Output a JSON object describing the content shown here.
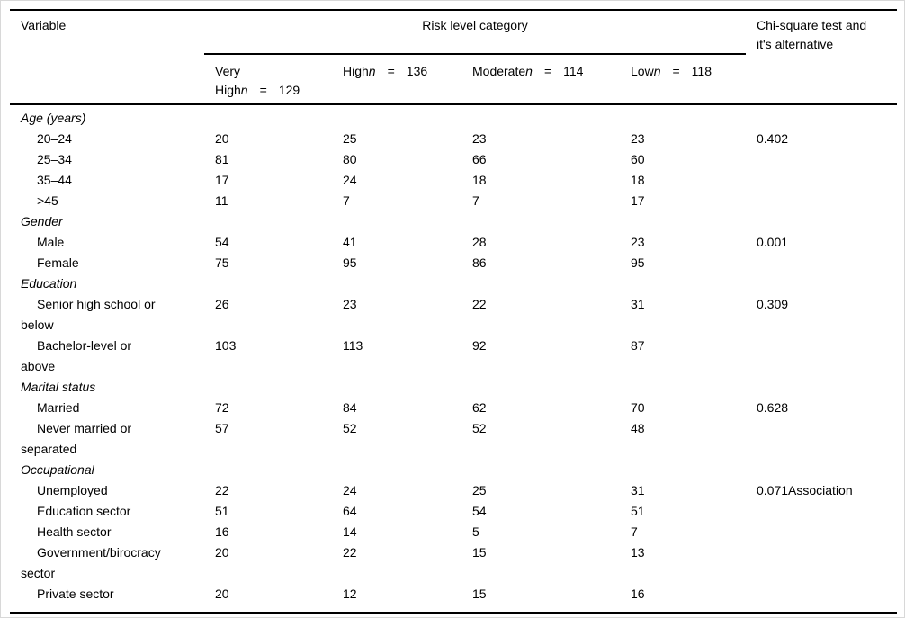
{
  "header": {
    "variable": "Variable",
    "risk_category": "Risk level category",
    "chi_line1": "Chi-square test and",
    "chi_line2": "it's alternative",
    "columns": [
      {
        "label_line1": "Very",
        "label_line2": "High",
        "n": "n",
        "eq": "=",
        "count": "129"
      },
      {
        "label": "High",
        "n": "n",
        "eq": "=",
        "count": "136"
      },
      {
        "label": "Moderate",
        "n": "n",
        "eq": "=",
        "count": "114"
      },
      {
        "label": "Low",
        "n": "n",
        "eq": "=",
        "count": "118"
      }
    ]
  },
  "table": {
    "rows": [
      {
        "type": "group",
        "label": "Age (years)"
      },
      {
        "type": "item",
        "label_lines": [
          "20–24"
        ],
        "values": [
          "20",
          "25",
          "23",
          "23"
        ],
        "chi": "0.402"
      },
      {
        "type": "item",
        "label_lines": [
          "25–34"
        ],
        "values": [
          "81",
          "80",
          "66",
          "60"
        ],
        "chi": ""
      },
      {
        "type": "item",
        "label_lines": [
          "35–44"
        ],
        "values": [
          "17",
          "24",
          "18",
          "18"
        ],
        "chi": ""
      },
      {
        "type": "item",
        "label_lines": [
          ">45"
        ],
        "values": [
          "11",
          "7",
          "7",
          "17"
        ],
        "chi": ""
      },
      {
        "type": "group",
        "label": "Gender"
      },
      {
        "type": "item",
        "label_lines": [
          "Male"
        ],
        "values": [
          "54",
          "41",
          "28",
          "23"
        ],
        "chi": "0.001"
      },
      {
        "type": "item",
        "label_lines": [
          "Female"
        ],
        "values": [
          "75",
          "95",
          "86",
          "95"
        ],
        "chi": ""
      },
      {
        "type": "group",
        "label": "Education"
      },
      {
        "type": "item",
        "label_lines": [
          "Senior high school or",
          "below"
        ],
        "values": [
          "26",
          "23",
          "22",
          "31"
        ],
        "chi": "0.309"
      },
      {
        "type": "item",
        "label_lines": [
          "Bachelor-level or",
          "above"
        ],
        "values": [
          "103",
          "113",
          "92",
          "87"
        ],
        "chi": ""
      },
      {
        "type": "group",
        "label": "Marital status"
      },
      {
        "type": "item",
        "label_lines": [
          "Married"
        ],
        "values": [
          "72",
          "84",
          "62",
          "70"
        ],
        "chi": "0.628"
      },
      {
        "type": "item",
        "label_lines": [
          "Never married or",
          "separated"
        ],
        "values": [
          "57",
          "52",
          "52",
          "48"
        ],
        "chi": ""
      },
      {
        "type": "group",
        "label": "Occupational"
      },
      {
        "type": "item",
        "label_lines": [
          "Unemployed"
        ],
        "values": [
          "22",
          "24",
          "25",
          "31"
        ],
        "chi": "0.071Association"
      },
      {
        "type": "item",
        "label_lines": [
          "Education sector"
        ],
        "values": [
          "51",
          "64",
          "54",
          "51"
        ],
        "chi": ""
      },
      {
        "type": "item",
        "label_lines": [
          "Health sector"
        ],
        "values": [
          "16",
          "14",
          "5",
          "7"
        ],
        "chi": ""
      },
      {
        "type": "item",
        "label_lines": [
          "Government/birocracy",
          "sector"
        ],
        "values": [
          "20",
          "22",
          "15",
          "13"
        ],
        "chi": ""
      },
      {
        "type": "item",
        "label_lines": [
          "Private sector"
        ],
        "values": [
          "20",
          "12",
          "15",
          "16"
        ],
        "chi": ""
      }
    ]
  },
  "colors": {
    "text": "#000000",
    "rule": "#000000",
    "background": "#ffffff",
    "frame": "#d8d8d8"
  }
}
